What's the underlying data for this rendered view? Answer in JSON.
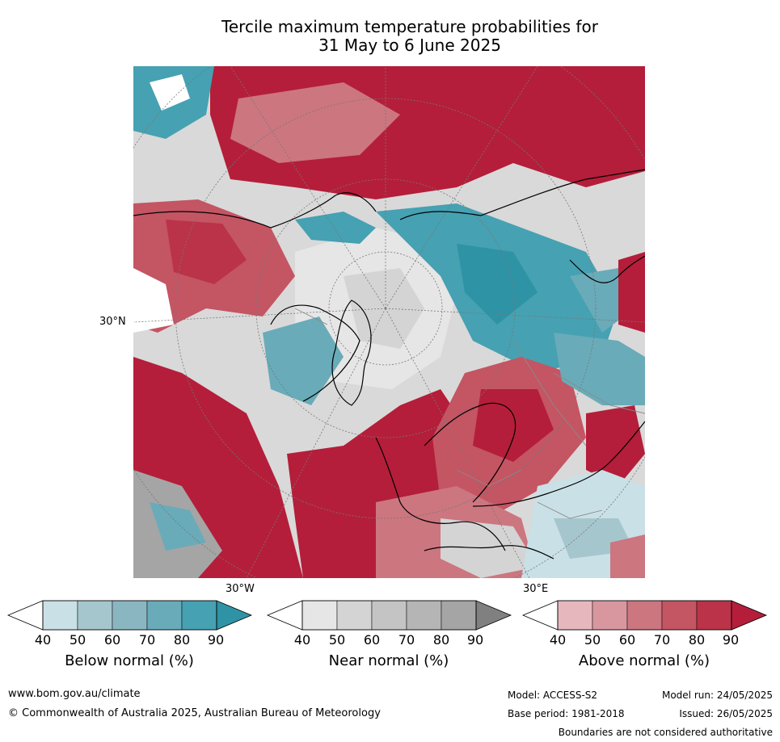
{
  "title_line1": "Tercile maximum temperature probabilities for",
  "title_line2": "31 May to 6 June 2025",
  "map": {
    "lat_label": "30°N",
    "lon_label_left": "30°W",
    "lon_label_right": "30°E"
  },
  "colorbars": [
    {
      "label": "Below normal (%)",
      "ticks": [
        "40",
        "50",
        "60",
        "70",
        "80",
        "90"
      ],
      "colors": [
        "#ffffff",
        "#c9e0e6",
        "#a6c6cd",
        "#8ab6c2",
        "#69abb9",
        "#46a1b2",
        "#2f93a6"
      ]
    },
    {
      "label": "Near normal (%)",
      "ticks": [
        "40",
        "50",
        "60",
        "70",
        "80",
        "90"
      ],
      "colors": [
        "#ffffff",
        "#e6e6e6",
        "#d4d4d4",
        "#c4c4c4",
        "#b5b5b5",
        "#a5a5a5",
        "#808080"
      ]
    },
    {
      "label": "Above normal (%)",
      "ticks": [
        "40",
        "50",
        "60",
        "70",
        "80",
        "90"
      ],
      "colors": [
        "#ffffff",
        "#e6b8bd",
        "#d8979f",
        "#cc7680",
        "#c45563",
        "#bb3348",
        "#b41e3a"
      ]
    }
  ],
  "footer": {
    "url": "www.bom.gov.au/climate",
    "copyright": "© Commonwealth of Australia 2025, Australian Bureau of Meteorology",
    "model": "Model: ACCESS-S2",
    "base_period": "Base period: 1981-2018",
    "model_run": "Model run: 24/05/2025",
    "issued": "Issued: 26/05/2025",
    "disclaimer": "Boundaries are not considered authoritative"
  }
}
